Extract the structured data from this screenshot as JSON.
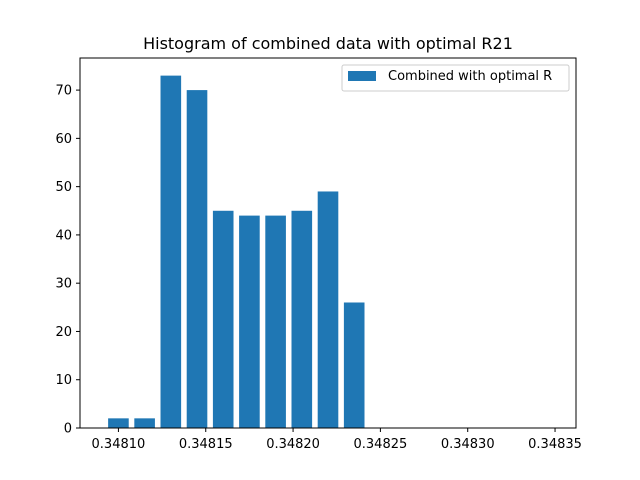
{
  "chart_data": {
    "type": "bar",
    "title": "Histogram of combined data with optimal R21",
    "xlabel": "",
    "ylabel": "",
    "bin_centers": [
      0.3481,
      0.348115,
      0.34813,
      0.348145,
      0.34816,
      0.348175,
      0.34819,
      0.348205,
      0.34822,
      0.348235
    ],
    "bar_width": 1.18e-05,
    "values": [
      2,
      2,
      73,
      70,
      45,
      44,
      44,
      45,
      49,
      26
    ],
    "xlim": [
      0.348078,
      0.348362
    ],
    "ylim": [
      0,
      76.65
    ],
    "x_ticks": [
      0.3481,
      0.34815,
      0.3482,
      0.34825,
      0.3483,
      0.34835
    ],
    "x_tick_labels": [
      "0.34810",
      "0.34815",
      "0.34820",
      "0.34825",
      "0.34830",
      "0.34835"
    ],
    "y_ticks": [
      0,
      10,
      20,
      30,
      40,
      50,
      60,
      70
    ],
    "y_tick_labels": [
      "0",
      "10",
      "20",
      "30",
      "40",
      "50",
      "60",
      "70"
    ],
    "legend": {
      "entries": [
        {
          "label": "Combined with optimal R",
          "color": "#1f77b4"
        }
      ],
      "placement": "upper-right"
    },
    "bar_color": "#1f77b4",
    "grid": false
  }
}
